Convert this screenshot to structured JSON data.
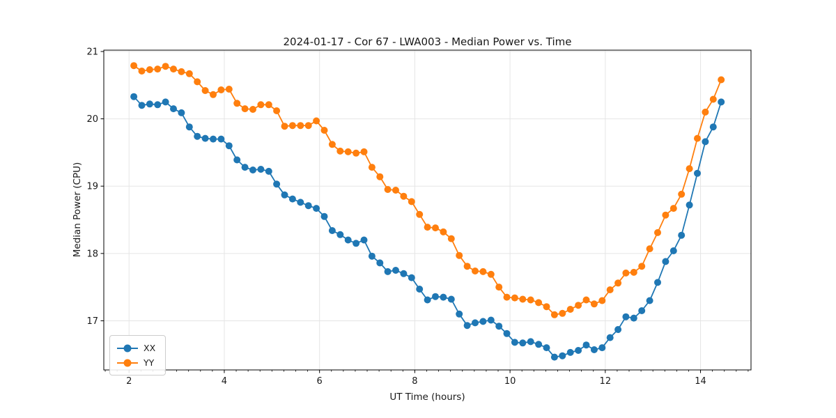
{
  "chart_data": {
    "type": "line",
    "title": "2024-01-17 - Cor 67 - LWA003 - Median Power vs. Time",
    "xlabel": "UT Time (hours)",
    "ylabel": "Median Power (CPU)",
    "xlim": [
      1.47,
      15.06
    ],
    "ylim": [
      16.27,
      21.02
    ],
    "xticks": [
      2,
      4,
      6,
      8,
      10,
      12,
      14
    ],
    "yticks": [
      17,
      18,
      19,
      20,
      21
    ],
    "minor_xtick_step": 0.25,
    "grid": true,
    "legend_position": "lower left",
    "marker": "circle",
    "x_start": 2.1,
    "x_step": 0.166667,
    "n_points": 75,
    "x_unit": "UT hours, evenly spaced every 10 minutes",
    "series": [
      {
        "name": "XX",
        "color": "#1f77b4",
        "values": [
          20.33,
          20.2,
          20.22,
          20.21,
          20.25,
          20.15,
          20.09,
          19.88,
          19.74,
          19.71,
          19.7,
          19.7,
          19.6,
          19.39,
          19.28,
          19.24,
          19.25,
          19.22,
          19.03,
          18.87,
          18.81,
          18.76,
          18.71,
          18.67,
          18.55,
          18.34,
          18.28,
          18.2,
          18.15,
          18.2,
          17.96,
          17.86,
          17.73,
          17.75,
          17.7,
          17.64,
          17.47,
          17.31,
          17.36,
          17.35,
          17.32,
          17.1,
          16.93,
          16.97,
          16.99,
          17.01,
          16.92,
          16.81,
          16.68,
          16.67,
          16.69,
          16.65,
          16.6,
          16.46,
          16.48,
          16.53,
          16.56,
          16.64,
          16.57,
          16.6,
          16.75,
          16.87,
          17.06,
          17.04,
          17.15,
          17.3,
          17.57,
          17.88,
          18.04,
          18.27,
          18.72,
          19.19,
          19.66,
          19.88,
          20.25
        ]
      },
      {
        "name": "YY",
        "color": "#ff7f0e",
        "values": [
          20.79,
          20.71,
          20.73,
          20.74,
          20.78,
          20.74,
          20.7,
          20.67,
          20.55,
          20.42,
          20.36,
          20.43,
          20.44,
          20.23,
          20.15,
          20.14,
          20.21,
          20.21,
          20.12,
          19.89,
          19.9,
          19.9,
          19.9,
          19.97,
          19.83,
          19.62,
          19.52,
          19.51,
          19.49,
          19.51,
          19.28,
          19.14,
          18.95,
          18.94,
          18.85,
          18.77,
          18.58,
          18.39,
          18.38,
          18.32,
          18.22,
          17.97,
          17.81,
          17.74,
          17.73,
          17.69,
          17.5,
          17.35,
          17.34,
          17.32,
          17.31,
          17.27,
          17.21,
          17.09,
          17.11,
          17.17,
          17.23,
          17.31,
          17.25,
          17.3,
          17.46,
          17.56,
          17.71,
          17.72,
          17.81,
          18.07,
          18.31,
          18.57,
          18.67,
          18.88,
          19.26,
          19.71,
          20.1,
          20.29,
          20.58
        ]
      }
    ]
  },
  "style": {
    "grid_color": "#e5e5e5",
    "spine_color": "#000000",
    "text_color": "#191919",
    "background": "#ffffff"
  }
}
